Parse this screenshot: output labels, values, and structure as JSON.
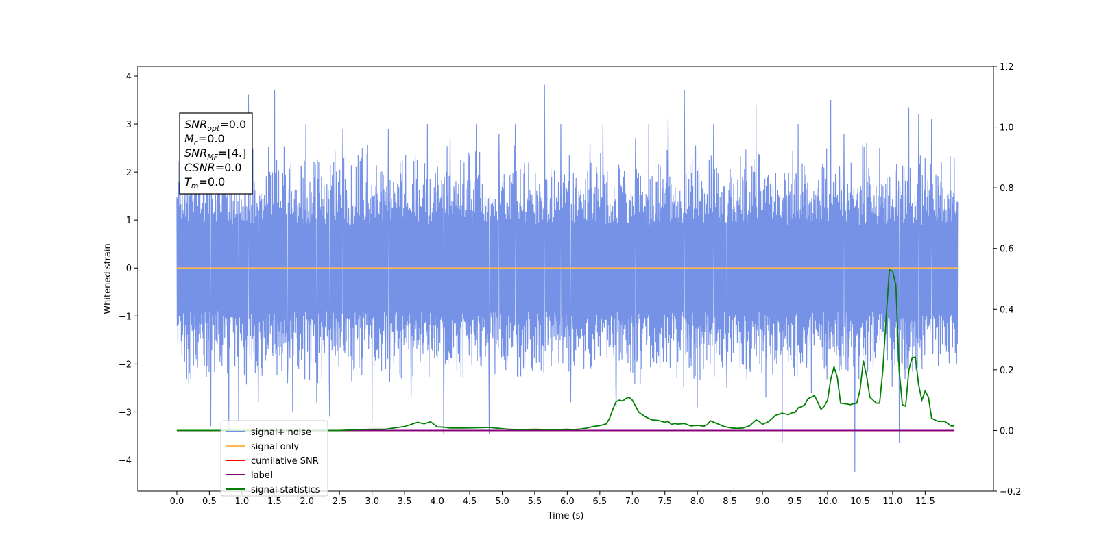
{
  "chart_data": {
    "type": "line",
    "xlabel": "Time (s)",
    "ylabel": "Whitened strain",
    "xlim": [
      -0.6,
      12.55
    ],
    "ylim": [
      -4.65,
      4.2
    ],
    "y2lim": [
      -0.2,
      1.2
    ],
    "x_ticks": [
      "0.0",
      "0.5",
      "1.0",
      "1.5",
      "2.0",
      "2.5",
      "3.0",
      "3.5",
      "4.0",
      "4.5",
      "5.0",
      "5.5",
      "6.0",
      "6.5",
      "7.0",
      "7.5",
      "8.0",
      "8.5",
      "9.0",
      "9.5",
      "10.0",
      "10.5",
      "11.0",
      "11.5"
    ],
    "y_ticks": [
      4,
      3,
      2,
      1,
      0,
      -1,
      -2,
      -3,
      -4
    ],
    "y_tick_labels": [
      "4",
      "3",
      "2",
      "1",
      "0",
      "−1",
      "−2",
      "−3",
      "−4"
    ],
    "y2_ticks": [
      "1.2",
      "1.0",
      "0.8",
      "0.6",
      "0.4",
      "0.2",
      "0.0",
      "−0.2"
    ],
    "annotation": [
      {
        "base": "SNR",
        "sub": "opt",
        "rest": "=0.0"
      },
      {
        "base": "M",
        "sub": "c",
        "rest": "=0.0"
      },
      {
        "base": "SNR",
        "sub": "MF",
        "rest": "=[4.]"
      },
      {
        "base": "CSNR",
        "sub": "",
        "rest": "=0.0"
      },
      {
        "base": "T",
        "sub": "m",
        "rest": "=0.0"
      }
    ],
    "legend_position": "lower-left",
    "series": [
      {
        "name": "signal+ noise",
        "color": "#6f8ce6",
        "axis": "left",
        "x_range": [
          0.0,
          12.0
        ],
        "typical_range": [
          -1.9,
          2.1
        ],
        "spikes": [
          [
            0.18,
            -2.4
          ],
          [
            0.52,
            -3.3
          ],
          [
            0.7,
            3.1
          ],
          [
            0.8,
            -3.4
          ],
          [
            0.95,
            -3.2
          ],
          [
            1.1,
            3.62
          ],
          [
            1.25,
            -2.8
          ],
          [
            1.5,
            3.7
          ],
          [
            1.7,
            -2.4
          ],
          [
            1.78,
            -3.0
          ],
          [
            1.98,
            3.0
          ],
          [
            2.15,
            -2.8
          ],
          [
            2.35,
            -3.1
          ],
          [
            2.55,
            2.9
          ],
          [
            2.85,
            2.5
          ],
          [
            3.0,
            -3.2
          ],
          [
            3.25,
            2.9
          ],
          [
            3.6,
            -2.7
          ],
          [
            3.85,
            3.0
          ],
          [
            4.1,
            -3.45
          ],
          [
            4.2,
            2.7
          ],
          [
            4.6,
            3.0
          ],
          [
            4.8,
            -3.45
          ],
          [
            4.95,
            2.8
          ],
          [
            5.2,
            3.0
          ],
          [
            5.65,
            3.82
          ],
          [
            5.9,
            3.0
          ],
          [
            6.05,
            -2.8
          ],
          [
            6.35,
            2.6
          ],
          [
            6.55,
            3.0
          ],
          [
            6.75,
            -2.9
          ],
          [
            7.05,
            2.7
          ],
          [
            7.25,
            3.0
          ],
          [
            7.55,
            3.1
          ],
          [
            7.8,
            3.7
          ],
          [
            8.0,
            -2.9
          ],
          [
            8.25,
            3.0
          ],
          [
            8.45,
            -2.5
          ],
          [
            8.9,
            3.4
          ],
          [
            9.05,
            -2.7
          ],
          [
            9.3,
            -3.65
          ],
          [
            9.55,
            3.0
          ],
          [
            9.75,
            -2.6
          ],
          [
            10.05,
            3.5
          ],
          [
            10.25,
            2.8
          ],
          [
            10.42,
            -4.25
          ],
          [
            10.6,
            2.6
          ],
          [
            10.8,
            2.5
          ],
          [
            11.1,
            -3.65
          ],
          [
            11.25,
            3.35
          ],
          [
            11.4,
            3.2
          ],
          [
            11.6,
            3.1
          ],
          [
            11.75,
            2.2
          ],
          [
            11.95,
            2.3
          ]
        ]
      },
      {
        "name": "signal only",
        "color": "#ffb84d",
        "axis": "left",
        "x": [
          0.0,
          12.0
        ],
        "y": [
          0.0,
          0.0
        ]
      },
      {
        "name": "cumilative SNR",
        "color": "#ff0000",
        "axis": "right",
        "x": [
          0.0,
          11.95
        ],
        "y": [
          0.0,
          0.0
        ]
      },
      {
        "name": "label",
        "color": "#800080",
        "axis": "right",
        "x": [
          0.0,
          11.95
        ],
        "y": [
          0.0,
          0.0
        ]
      },
      {
        "name": "signal statistics",
        "color": "#008000",
        "axis": "right",
        "x": [
          0.0,
          0.5,
          1.0,
          1.5,
          2.0,
          2.5,
          2.8,
          3.0,
          3.2,
          3.4,
          3.5,
          3.6,
          3.7,
          3.8,
          3.9,
          4.0,
          4.1,
          4.2,
          4.4,
          4.6,
          4.8,
          4.9,
          5.0,
          5.1,
          5.3,
          5.5,
          5.7,
          5.8,
          6.0,
          6.1,
          6.2,
          6.3,
          6.4,
          6.5,
          6.6,
          6.65,
          6.7,
          6.75,
          6.8,
          6.85,
          6.9,
          6.95,
          7.0,
          7.1,
          7.2,
          7.3,
          7.4,
          7.5,
          7.55,
          7.6,
          7.65,
          7.7,
          7.8,
          7.9,
          8.0,
          8.1,
          8.15,
          8.2,
          8.3,
          8.4,
          8.5,
          8.6,
          8.7,
          8.8,
          8.9,
          8.95,
          9.0,
          9.1,
          9.2,
          9.25,
          9.3,
          9.4,
          9.45,
          9.5,
          9.55,
          9.6,
          9.65,
          9.7,
          9.8,
          9.9,
          9.95,
          10.0,
          10.05,
          10.1,
          10.15,
          10.2,
          10.3,
          10.35,
          10.4,
          10.45,
          10.5,
          10.55,
          10.6,
          10.65,
          10.7,
          10.75,
          10.8,
          10.85,
          10.9,
          10.95,
          11.0,
          11.05,
          11.1,
          11.15,
          11.2,
          11.25,
          11.3,
          11.35,
          11.4,
          11.45,
          11.5,
          11.55,
          11.6,
          11.7,
          11.8,
          11.9,
          11.95
        ],
        "y": [
          0.0,
          0.0,
          0.0,
          0.0,
          0.0,
          0.0,
          0.003,
          0.004,
          0.004,
          0.01,
          0.013,
          0.02,
          0.027,
          0.022,
          0.029,
          0.012,
          0.011,
          0.008,
          0.008,
          0.009,
          0.01,
          0.008,
          0.006,
          0.004,
          0.003,
          0.004,
          0.003,
          0.003,
          0.004,
          0.003,
          0.005,
          0.008,
          0.013,
          0.016,
          0.022,
          0.04,
          0.07,
          0.095,
          0.1,
          0.097,
          0.105,
          0.11,
          0.1,
          0.06,
          0.045,
          0.035,
          0.033,
          0.027,
          0.03,
          0.02,
          0.023,
          0.021,
          0.023,
          0.015,
          0.017,
          0.014,
          0.019,
          0.032,
          0.023,
          0.014,
          0.009,
          0.007,
          0.008,
          0.015,
          0.035,
          0.03,
          0.02,
          0.03,
          0.05,
          0.053,
          0.057,
          0.052,
          0.058,
          0.059,
          0.075,
          0.078,
          0.085,
          0.105,
          0.115,
          0.07,
          0.08,
          0.1,
          0.17,
          0.21,
          0.175,
          0.09,
          0.087,
          0.085,
          0.088,
          0.09,
          0.135,
          0.23,
          0.18,
          0.11,
          0.1,
          0.09,
          0.09,
          0.2,
          0.37,
          0.53,
          0.525,
          0.48,
          0.2,
          0.085,
          0.08,
          0.2,
          0.24,
          0.242,
          0.15,
          0.1,
          0.13,
          0.11,
          0.04,
          0.03,
          0.03,
          0.015,
          0.015
        ]
      }
    ]
  }
}
